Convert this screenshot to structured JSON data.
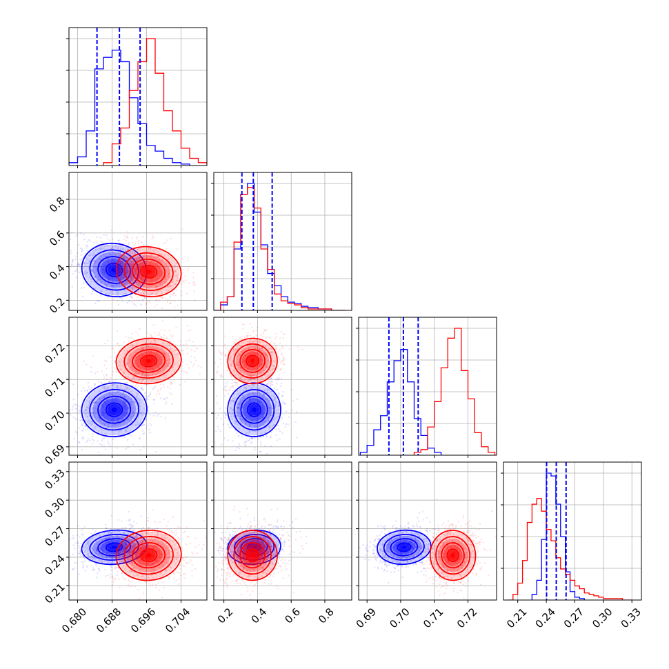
{
  "chart_data": {
    "type": "corner",
    "colors": {
      "series_a": "#0000ff",
      "series_b": "#ff0000",
      "grid": "#b0b0b0"
    },
    "grid": true,
    "parameters": [
      {
        "range": [
          0.678,
          0.71
        ],
        "ticks": [
          0.68,
          0.688,
          0.696,
          0.704
        ],
        "tick_labels": [
          "0.680",
          "0.688",
          "0.696",
          "0.704"
        ]
      },
      {
        "range": [
          0.14,
          0.96
        ],
        "ticks": [
          0.2,
          0.4,
          0.6,
          0.8
        ],
        "tick_labels": [
          "0.2",
          "0.4",
          "0.6",
          "0.8"
        ]
      },
      {
        "range": [
          0.6875,
          0.7285
        ],
        "ticks": [
          0.69,
          0.7,
          0.71,
          0.72
        ],
        "tick_labels": [
          "0.69",
          "0.70",
          "0.71",
          "0.72"
        ]
      },
      {
        "range": [
          0.195,
          0.34
        ],
        "ticks": [
          0.21,
          0.24,
          0.27,
          0.3,
          0.33
        ],
        "tick_labels": [
          "0.21",
          "0.24",
          "0.27",
          "0.30",
          "0.33"
        ]
      }
    ],
    "series": [
      {
        "color": "#0000ff",
        "means": [
          0.6885,
          0.38,
          0.701,
          0.2505
        ],
        "sds": [
          0.0036,
          0.075,
          0.0038,
          0.0085
        ],
        "quantiles": [
          [
            0.6845,
            0.6897,
            0.6945
          ],
          [
            0.307,
            0.375,
            0.487
          ],
          [
            0.6965,
            0.7008,
            0.7052
          ],
          [
            0.2403,
            0.2505,
            0.2608
          ]
        ],
        "histograms": [
          {
            "edges": [
              0.678,
              0.68,
              0.682,
              0.684,
              0.686,
              0.688,
              0.69,
              0.692,
              0.694,
              0.696,
              0.698,
              0.7,
              0.702,
              0.704,
              0.706
            ],
            "counts": [
              0.02,
              0.06,
              0.24,
              0.67,
              0.75,
              0.8,
              0.72,
              0.47,
              0.29,
              0.14,
              0.1,
              0.05,
              0.02,
              0.01
            ]
          },
          {
            "edges": [
              0.14,
              0.18,
              0.22,
              0.26,
              0.3,
              0.34,
              0.38,
              0.42,
              0.46,
              0.5,
              0.54,
              0.58,
              0.62,
              0.66,
              0.7,
              0.76,
              0.84,
              0.92
            ],
            "counts": [
              0.0,
              0.04,
              0.1,
              0.45,
              0.85,
              0.93,
              0.72,
              0.48,
              0.27,
              0.18,
              0.1,
              0.06,
              0.05,
              0.03,
              0.02,
              0.01,
              0.0
            ]
          },
          {
            "edges": [
              0.688,
              0.69,
              0.692,
              0.694,
              0.696,
              0.698,
              0.7,
              0.702,
              0.704,
              0.706,
              0.708,
              0.71,
              0.712
            ],
            "counts": [
              0.02,
              0.07,
              0.18,
              0.28,
              0.52,
              0.67,
              0.75,
              0.52,
              0.26,
              0.14,
              0.05,
              0.02
            ]
          },
          {
            "edges": [
              0.225,
              0.23,
              0.235,
              0.24,
              0.245,
              0.25,
              0.255,
              0.26,
              0.265,
              0.27,
              0.275,
              0.28
            ],
            "counts": [
              0.04,
              0.14,
              0.43,
              0.9,
              0.88,
              0.68,
              0.45,
              0.2,
              0.06,
              0.02,
              0.01
            ]
          }
        ]
      },
      {
        "color": "#ff0000",
        "means": [
          0.6965,
          0.37,
          0.7155,
          0.242
        ],
        "sds": [
          0.0036,
          0.07,
          0.0032,
          0.0125
        ],
        "quantiles": [],
        "histograms": [
          {
            "edges": [
              0.686,
              0.688,
              0.69,
              0.692,
              0.694,
              0.696,
              0.698,
              0.7,
              0.702,
              0.704,
              0.706,
              0.708,
              0.71
            ],
            "counts": [
              0.02,
              0.15,
              0.26,
              0.52,
              0.72,
              0.88,
              0.64,
              0.38,
              0.24,
              0.12,
              0.05,
              0.02
            ]
          },
          {
            "edges": [
              0.14,
              0.18,
              0.22,
              0.26,
              0.3,
              0.34,
              0.38,
              0.42,
              0.46,
              0.5,
              0.54,
              0.58,
              0.62,
              0.66,
              0.7,
              0.76,
              0.84,
              0.92
            ],
            "counts": [
              0.0,
              0.06,
              0.1,
              0.5,
              0.85,
              0.9,
              0.75,
              0.45,
              0.3,
              0.12,
              0.07,
              0.05,
              0.04,
              0.02,
              0.01,
              0.01,
              0.0
            ]
          },
          {
            "edges": [
              0.704,
              0.706,
              0.708,
              0.71,
              0.712,
              0.714,
              0.716,
              0.718,
              0.72,
              0.722,
              0.724,
              0.726,
              0.728
            ],
            "counts": [
              0.02,
              0.04,
              0.2,
              0.38,
              0.62,
              0.83,
              0.9,
              0.6,
              0.4,
              0.16,
              0.06,
              0.02
            ]
          },
          {
            "edges": [
              0.2,
              0.205,
              0.21,
              0.215,
              0.22,
              0.225,
              0.23,
              0.235,
              0.24,
              0.245,
              0.25,
              0.255,
              0.26,
              0.265,
              0.27,
              0.275,
              0.28,
              0.285,
              0.29,
              0.295,
              0.3,
              0.31,
              0.32,
              0.33
            ],
            "counts": [
              0.0,
              0.04,
              0.12,
              0.28,
              0.55,
              0.68,
              0.72,
              0.63,
              0.5,
              0.42,
              0.3,
              0.22,
              0.18,
              0.14,
              0.1,
              0.08,
              0.05,
              0.04,
              0.03,
              0.02,
              0.01,
              0.01,
              0.0
            ]
          }
        ]
      }
    ]
  }
}
